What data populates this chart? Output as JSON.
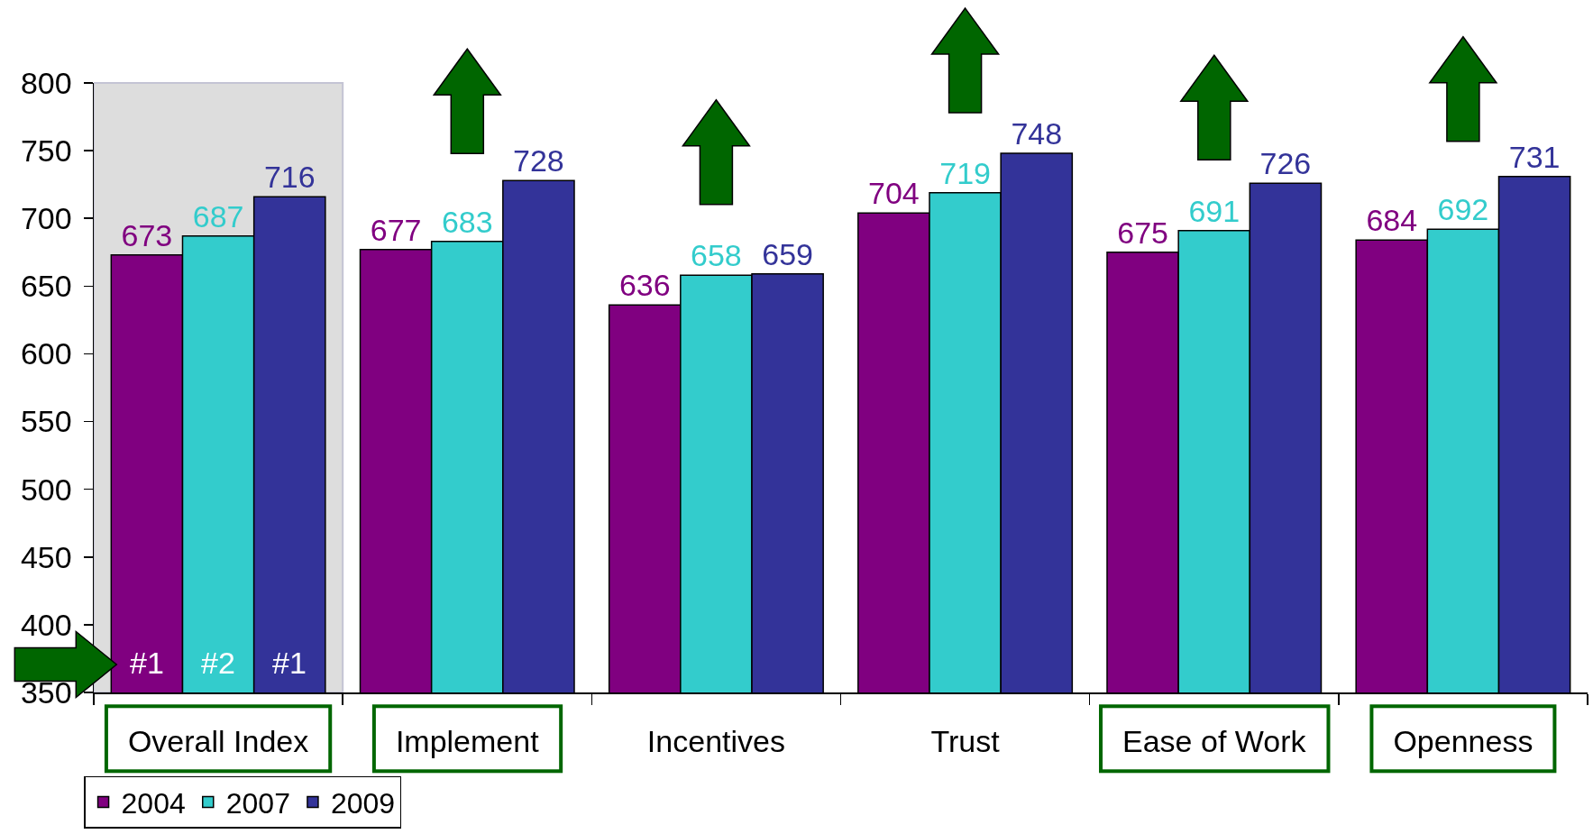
{
  "chart_data": {
    "type": "bar",
    "categories": [
      "Overall Index",
      "Implement",
      "Incentives",
      "Trust",
      "Ease of Work",
      "Openness"
    ],
    "series": [
      {
        "name": "2004",
        "color": "#800080",
        "values": [
          673,
          677,
          636,
          704,
          675,
          684
        ]
      },
      {
        "name": "2007",
        "color": "#33cccc",
        "values": [
          687,
          683,
          658,
          719,
          691,
          692
        ]
      },
      {
        "name": "2009",
        "color": "#333399",
        "values": [
          716,
          728,
          659,
          748,
          726,
          731
        ]
      }
    ],
    "ylim": [
      350,
      800
    ],
    "yticks": [
      350,
      400,
      450,
      500,
      550,
      600,
      650,
      700,
      750,
      800
    ],
    "data_labels": true,
    "legend": "bottom left",
    "bands": [
      {
        "axis": "x",
        "from": "Overall Index",
        "to": "Overall Index",
        "color": "#dddddd"
      }
    ],
    "annotations": [
      "#1",
      "#2",
      "#1"
    ]
  }
}
